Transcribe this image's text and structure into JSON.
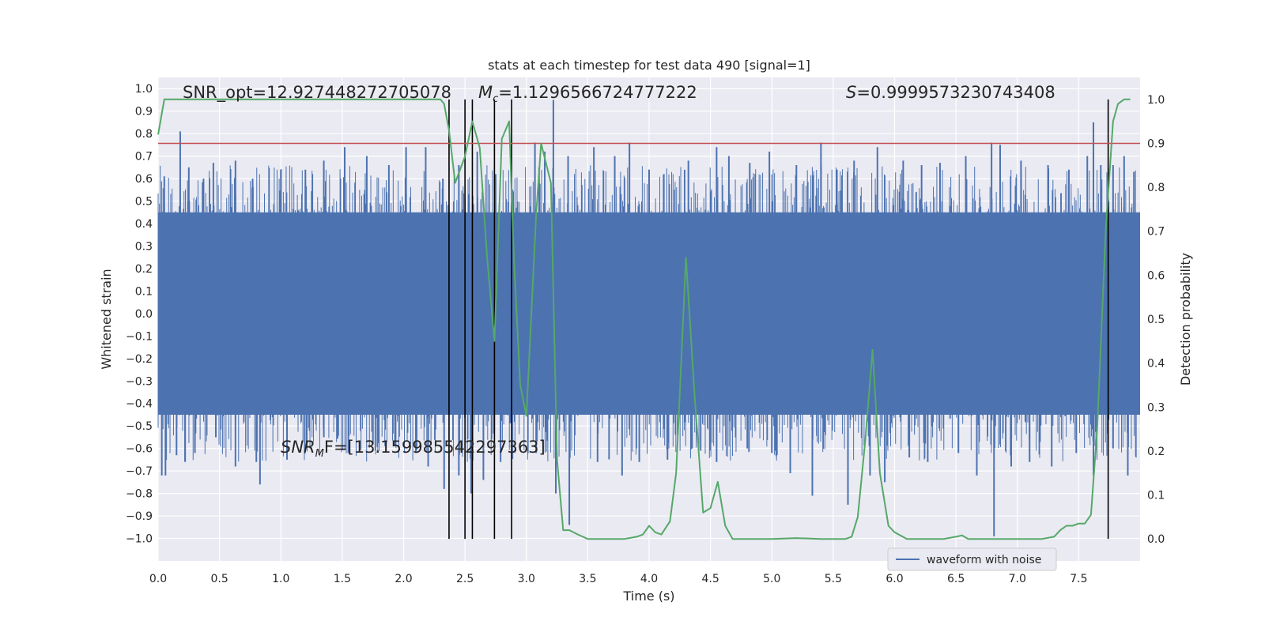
{
  "chart_data": {
    "type": "line",
    "title": "stats at each timestep for test data 490 [signal=1]",
    "xlabel": "Time (s)",
    "ylabel_left": "Whitened strain",
    "ylabel_right": "Detection probability",
    "xlim": [
      0.0,
      8.0
    ],
    "ylim_left": [
      -1.1,
      1.05
    ],
    "ylim_right": [
      -0.05,
      1.05
    ],
    "xticks": [
      0.0,
      0.5,
      1.0,
      1.5,
      2.0,
      2.5,
      3.0,
      3.5,
      4.0,
      4.5,
      5.0,
      5.5,
      6.0,
      6.5,
      7.0,
      7.5
    ],
    "xtick_labels": [
      "0.0",
      "0.5",
      "1.0",
      "1.5",
      "2.0",
      "2.5",
      "3.0",
      "3.5",
      "4.0",
      "4.5",
      "5.0",
      "5.5",
      "6.0",
      "6.5",
      "7.0",
      "7.5"
    ],
    "yticks_left": [
      1.0,
      0.9,
      0.8,
      0.7,
      0.6,
      0.5,
      0.4,
      0.3,
      0.2,
      0.1,
      0.0,
      -0.1,
      -0.2,
      -0.3,
      -0.4,
      -0.5,
      -0.6,
      -0.7,
      -0.8,
      -0.9,
      -1.0
    ],
    "ytick_labels_left": [
      "1.0",
      "0.9",
      "0.8",
      "0.7",
      "0.6",
      "0.5",
      "0.4",
      "0.3",
      "0.2",
      "0.1",
      "0.0",
      "−0.1",
      "−0.2",
      "−0.3",
      "−0.4",
      "−0.5",
      "−0.6",
      "−0.7",
      "−0.8",
      "−0.9",
      "−1.0"
    ],
    "yticks_right": [
      1.0,
      0.9,
      0.8,
      0.7,
      0.6,
      0.5,
      0.4,
      0.3,
      0.2,
      0.1,
      0.0
    ],
    "ytick_labels_right": [
      "1.0",
      "0.9",
      "0.8",
      "0.7",
      "0.6",
      "0.5",
      "0.4",
      "0.3",
      "0.2",
      "0.1",
      "0.0"
    ],
    "grid": true,
    "legend": {
      "location": "lower right",
      "entries": [
        "waveform with noise"
      ]
    },
    "annotations": {
      "snr_opt": "SNR_opt=12.927448272705078",
      "mc_symbol": "M",
      "mc_subscript": "c",
      "mc_value": "=1.1296566724777222",
      "s_symbol": "S",
      "s_value": "=0.9999573230743408",
      "snr_mf_symbol": "SNR",
      "snr_mf_subscript": "M",
      "snr_mf_suffix": "F=[13.159985542297363]"
    },
    "threshold_line": {
      "value": 0.9,
      "axis": "right",
      "color": "#c44e52"
    },
    "vertical_markers": [
      2.37,
      2.5,
      2.56,
      2.74,
      2.88,
      7.74
    ],
    "waveform": {
      "name": "waveform with noise",
      "color": "#4c72b0",
      "dense_band": [
        -0.45,
        0.45
      ],
      "peaks_pos": [
        [
          0.05,
          0.61
        ],
        [
          0.18,
          0.81
        ],
        [
          0.25,
          0.65
        ],
        [
          0.37,
          0.6
        ],
        [
          0.45,
          0.67
        ],
        [
          0.63,
          0.68
        ],
        [
          0.77,
          0.6
        ],
        [
          1.0,
          0.64
        ],
        [
          1.2,
          0.64
        ],
        [
          1.35,
          0.68
        ],
        [
          1.52,
          0.74
        ],
        [
          1.7,
          0.7
        ],
        [
          1.88,
          0.66
        ],
        [
          2.02,
          0.74
        ],
        [
          2.18,
          0.74
        ],
        [
          2.32,
          0.6
        ],
        [
          2.45,
          0.66
        ],
        [
          2.6,
          0.72
        ],
        [
          2.75,
          0.62
        ],
        [
          3.07,
          0.76
        ],
        [
          3.15,
          0.72
        ],
        [
          3.22,
          0.95
        ],
        [
          3.34,
          0.7
        ],
        [
          3.55,
          0.74
        ],
        [
          3.72,
          0.7
        ],
        [
          3.84,
          0.76
        ],
        [
          4.0,
          0.64
        ],
        [
          4.12,
          0.62
        ],
        [
          4.32,
          0.68
        ],
        [
          4.55,
          0.74
        ],
        [
          4.65,
          0.7
        ],
        [
          4.82,
          0.67
        ],
        [
          4.98,
          0.72
        ],
        [
          5.2,
          0.66
        ],
        [
          5.4,
          0.76
        ],
        [
          5.53,
          0.64
        ],
        [
          5.67,
          0.68
        ],
        [
          5.86,
          0.74
        ],
        [
          6.07,
          0.68
        ],
        [
          6.22,
          0.66
        ],
        [
          6.37,
          0.67
        ],
        [
          6.58,
          0.7
        ],
        [
          6.79,
          0.76
        ],
        [
          6.86,
          0.75
        ],
        [
          7.03,
          0.68
        ],
        [
          7.25,
          0.66
        ],
        [
          7.42,
          0.64
        ],
        [
          7.57,
          0.7
        ],
        [
          7.62,
          0.85
        ],
        [
          7.68,
          0.66
        ],
        [
          7.78,
          0.66
        ],
        [
          7.87,
          0.7
        ],
        [
          7.95,
          0.63
        ]
      ],
      "peaks_neg": [
        [
          0.03,
          -0.72
        ],
        [
          0.06,
          -0.72
        ],
        [
          0.15,
          -0.63
        ],
        [
          0.22,
          -0.66
        ],
        [
          0.3,
          -0.62
        ],
        [
          0.47,
          -0.55
        ],
        [
          0.63,
          -0.68
        ],
        [
          0.8,
          -0.66
        ],
        [
          0.83,
          -0.76
        ],
        [
          1.05,
          -0.65
        ],
        [
          1.21,
          -0.6
        ],
        [
          1.35,
          -0.55
        ],
        [
          1.55,
          -0.62
        ],
        [
          1.75,
          -0.58
        ],
        [
          1.93,
          -0.59
        ],
        [
          2.1,
          -0.62
        ],
        [
          2.2,
          -0.68
        ],
        [
          2.33,
          -0.78
        ],
        [
          2.45,
          -0.72
        ],
        [
          2.55,
          -0.8
        ],
        [
          2.65,
          -0.74
        ],
        [
          2.79,
          -0.66
        ],
        [
          3.08,
          -0.62
        ],
        [
          3.24,
          -0.8
        ],
        [
          3.35,
          -0.94
        ],
        [
          3.58,
          -0.66
        ],
        [
          3.78,
          -0.72
        ],
        [
          3.92,
          -0.66
        ],
        [
          4.15,
          -0.65
        ],
        [
          4.35,
          -0.6
        ],
        [
          4.55,
          -0.66
        ],
        [
          4.8,
          -0.6
        ],
        [
          5.0,
          -0.62
        ],
        [
          5.15,
          -0.71
        ],
        [
          5.33,
          -0.81
        ],
        [
          5.62,
          -0.85
        ],
        [
          5.8,
          -0.72
        ],
        [
          5.92,
          -0.75
        ],
        [
          6.12,
          -0.64
        ],
        [
          6.27,
          -0.66
        ],
        [
          6.52,
          -0.62
        ],
        [
          6.67,
          -0.72
        ],
        [
          6.81,
          -0.99
        ],
        [
          6.95,
          -0.68
        ],
        [
          7.1,
          -0.66
        ],
        [
          7.28,
          -0.68
        ],
        [
          7.48,
          -0.62
        ],
        [
          7.62,
          -0.72
        ],
        [
          7.78,
          -0.6
        ],
        [
          7.9,
          -0.72
        ]
      ]
    },
    "detection_probability": {
      "color": "#55a868",
      "x": [
        0.0,
        0.05,
        0.2,
        0.4,
        0.6,
        0.8,
        1.0,
        1.2,
        1.4,
        1.6,
        1.8,
        2.0,
        2.1,
        2.2,
        2.3,
        2.33,
        2.37,
        2.42,
        2.5,
        2.56,
        2.62,
        2.68,
        2.74,
        2.8,
        2.86,
        2.9,
        2.95,
        3.0,
        3.08,
        3.12,
        3.2,
        3.25,
        3.3,
        3.35,
        3.42,
        3.5,
        3.6,
        3.7,
        3.8,
        3.9,
        3.95,
        4.0,
        4.05,
        4.1,
        4.17,
        4.22,
        4.3,
        4.37,
        4.44,
        4.5,
        4.56,
        4.62,
        4.68,
        4.75,
        5.0,
        5.2,
        5.4,
        5.6,
        5.65,
        5.7,
        5.76,
        5.82,
        5.88,
        5.95,
        6.0,
        6.1,
        6.2,
        6.4,
        6.5,
        6.55,
        6.6,
        6.7,
        6.8,
        7.0,
        7.2,
        7.3,
        7.35,
        7.4,
        7.45,
        7.5,
        7.55,
        7.6,
        7.65,
        7.72,
        7.78,
        7.82,
        7.87,
        7.92
      ],
      "y": [
        0.92,
        1.0,
        1.0,
        1.0,
        1.0,
        1.0,
        1.0,
        1.0,
        1.0,
        1.0,
        1.0,
        1.0,
        1.0,
        1.0,
        1.0,
        0.99,
        0.93,
        0.81,
        0.87,
        0.95,
        0.89,
        0.64,
        0.45,
        0.91,
        0.95,
        0.63,
        0.35,
        0.28,
        0.74,
        0.9,
        0.81,
        0.18,
        0.02,
        0.02,
        0.01,
        0.0,
        0.0,
        0.0,
        0.0,
        0.005,
        0.01,
        0.03,
        0.015,
        0.01,
        0.04,
        0.15,
        0.64,
        0.33,
        0.06,
        0.07,
        0.13,
        0.03,
        0.0,
        0.0,
        0.0,
        0.002,
        0.0,
        0.0,
        0.005,
        0.05,
        0.22,
        0.43,
        0.15,
        0.03,
        0.015,
        0.0,
        0.0,
        0.0,
        0.005,
        0.008,
        0.0,
        0.0,
        0.0,
        0.0,
        0.0,
        0.005,
        0.02,
        0.03,
        0.03,
        0.035,
        0.035,
        0.055,
        0.25,
        0.7,
        0.95,
        0.99,
        1.0,
        1.0
      ]
    }
  }
}
